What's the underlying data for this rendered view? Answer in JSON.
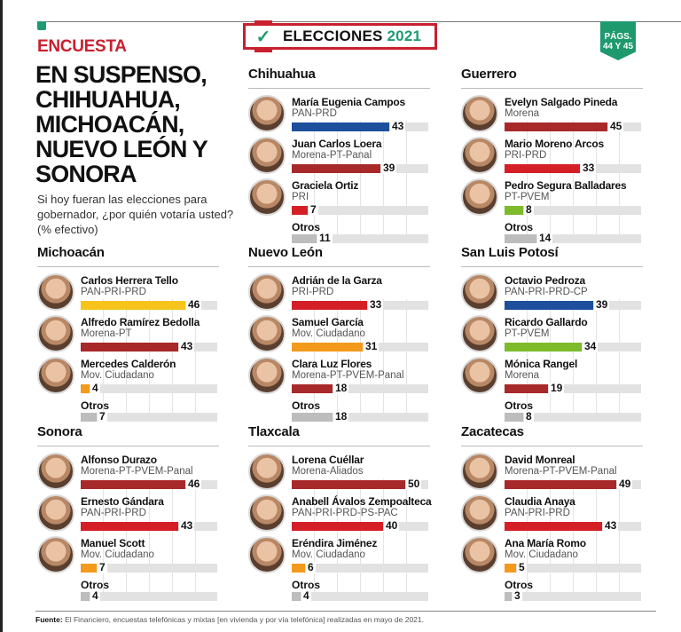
{
  "header": {
    "kicker": "ENCUESTA",
    "headline": "EN SUSPENSO, CHIHUAHUA, MICHOACÁN, NUEVO LEÓN Y SONORA",
    "deck": "Si hoy fueran las elecciones para gobernador, ¿por quién votaría usted? (% efectivo)",
    "brand_icon": "checkmark-icon",
    "brand_text": "ELECCIONES",
    "brand_year": "2021",
    "pages_line1": "PÁGS.",
    "pages_line2": "44 Y 45"
  },
  "colors": {
    "accent_red": "#c8202f",
    "accent_green": "#1e9a6e",
    "morena": "#a8292a",
    "pri": "#d41f26",
    "pan": "#1d4f9c",
    "pan_pri_prd_mich": "#f6c41b",
    "movimiento_ciudadano": "#f39a1d",
    "pt_pvem": "#7dbb2a",
    "otros": "#bdbdbd",
    "track": "#e2e2e2"
  },
  "footer": {
    "source_label": "Fuente:",
    "source_text": " El Financiero, encuestas telefónicas y mixtas [en vivienda y por vía telefónica] realizadas en mayo de 2021."
  },
  "chart_data": [
    {
      "type": "bar",
      "title": "Chihuahua",
      "categories": [
        "María Eugenia Campos",
        "Juan Carlos Loera",
        "Graciela Ortiz",
        "Otros"
      ],
      "parties": [
        "PAN-PRD",
        "Morena-PT-Panal",
        "PRI",
        ""
      ],
      "values": [
        43,
        39,
        7,
        11
      ],
      "colors": [
        "#1d4f9c",
        "#a8292a",
        "#d41f26",
        "#bdbdbd"
      ],
      "xlim": [
        0,
        60
      ],
      "grid": true
    },
    {
      "type": "bar",
      "title": "Guerrero",
      "categories": [
        "Evelyn Salgado Pineda",
        "Mario Moreno Arcos",
        "Pedro Segura Balladares",
        "Otros"
      ],
      "parties": [
        "Morena",
        "PRI-PRD",
        "PT-PVEM",
        ""
      ],
      "values": [
        45,
        33,
        8,
        14
      ],
      "colors": [
        "#a8292a",
        "#d41f26",
        "#7dbb2a",
        "#bdbdbd"
      ],
      "xlim": [
        0,
        60
      ],
      "grid": true
    },
    {
      "type": "bar",
      "title": "Michoacán",
      "categories": [
        "Carlos Herrera Tello",
        "Alfredo Ramírez Bedolla",
        "Mercedes Calderón",
        "Otros"
      ],
      "parties": [
        "PAN-PRI-PRD",
        "Morena-PT",
        "Mov. Ciudadano",
        ""
      ],
      "values": [
        46,
        43,
        4,
        7
      ],
      "colors": [
        "#f6c41b",
        "#a8292a",
        "#f39a1d",
        "#bdbdbd"
      ],
      "xlim": [
        0,
        60
      ],
      "grid": true
    },
    {
      "type": "bar",
      "title": "Nuevo León",
      "categories": [
        "Adrián de la Garza",
        "Samuel García",
        "Clara Luz Flores",
        "Otros"
      ],
      "parties": [
        "PRI-PRD",
        "Mov. Ciudadano",
        "Morena-PT-PVEM-Panal",
        ""
      ],
      "values": [
        33,
        31,
        18,
        18
      ],
      "colors": [
        "#d41f26",
        "#f39a1d",
        "#a8292a",
        "#bdbdbd"
      ],
      "xlim": [
        0,
        60
      ],
      "grid": true
    },
    {
      "type": "bar",
      "title": "San Luis Potosí",
      "categories": [
        "Octavio Pedroza",
        "Ricardo Gallardo",
        "Mónica Rangel",
        "Otros"
      ],
      "parties": [
        "PAN-PRI-PRD-CP",
        "PT-PVEM",
        "Morena",
        ""
      ],
      "values": [
        39,
        34,
        19,
        8
      ],
      "colors": [
        "#1d4f9c",
        "#7dbb2a",
        "#a8292a",
        "#bdbdbd"
      ],
      "xlim": [
        0,
        60
      ],
      "grid": true
    },
    {
      "type": "bar",
      "title": "Sonora",
      "categories": [
        "Alfonso Durazo",
        "Ernesto Gándara",
        "Manuel Scott",
        "Otros"
      ],
      "parties": [
        "Morena-PT-PVEM-Panal",
        "PAN-PRI-PRD",
        "Mov. Ciudadano",
        ""
      ],
      "values": [
        46,
        43,
        7,
        4
      ],
      "colors": [
        "#a8292a",
        "#d41f26",
        "#f39a1d",
        "#bdbdbd"
      ],
      "xlim": [
        0,
        60
      ],
      "grid": true
    },
    {
      "type": "bar",
      "title": "Tlaxcala",
      "categories": [
        "Lorena Cuéllar",
        "Anabell Ávalos Zempoalteca",
        "Eréndira Jiménez",
        "Otros"
      ],
      "parties": [
        "Morena-Aliados",
        "PAN-PRI-PRD-PS-PAC",
        "Mov. Ciudadano",
        ""
      ],
      "values": [
        50,
        40,
        6,
        4
      ],
      "colors": [
        "#a8292a",
        "#d41f26",
        "#f39a1d",
        "#bdbdbd"
      ],
      "xlim": [
        0,
        60
      ],
      "grid": true
    },
    {
      "type": "bar",
      "title": "Zacatecas",
      "categories": [
        "David Monreal",
        "Claudia Anaya",
        "Ana María Romo",
        "Otros"
      ],
      "parties": [
        "Morena-PT-PVEM-Panal",
        "PAN-PRI-PRD",
        "Mov. Ciudadano",
        ""
      ],
      "values": [
        49,
        43,
        5,
        3
      ],
      "colors": [
        "#a8292a",
        "#d41f26",
        "#f39a1d",
        "#bdbdbd"
      ],
      "xlim": [
        0,
        60
      ],
      "grid": true
    }
  ]
}
